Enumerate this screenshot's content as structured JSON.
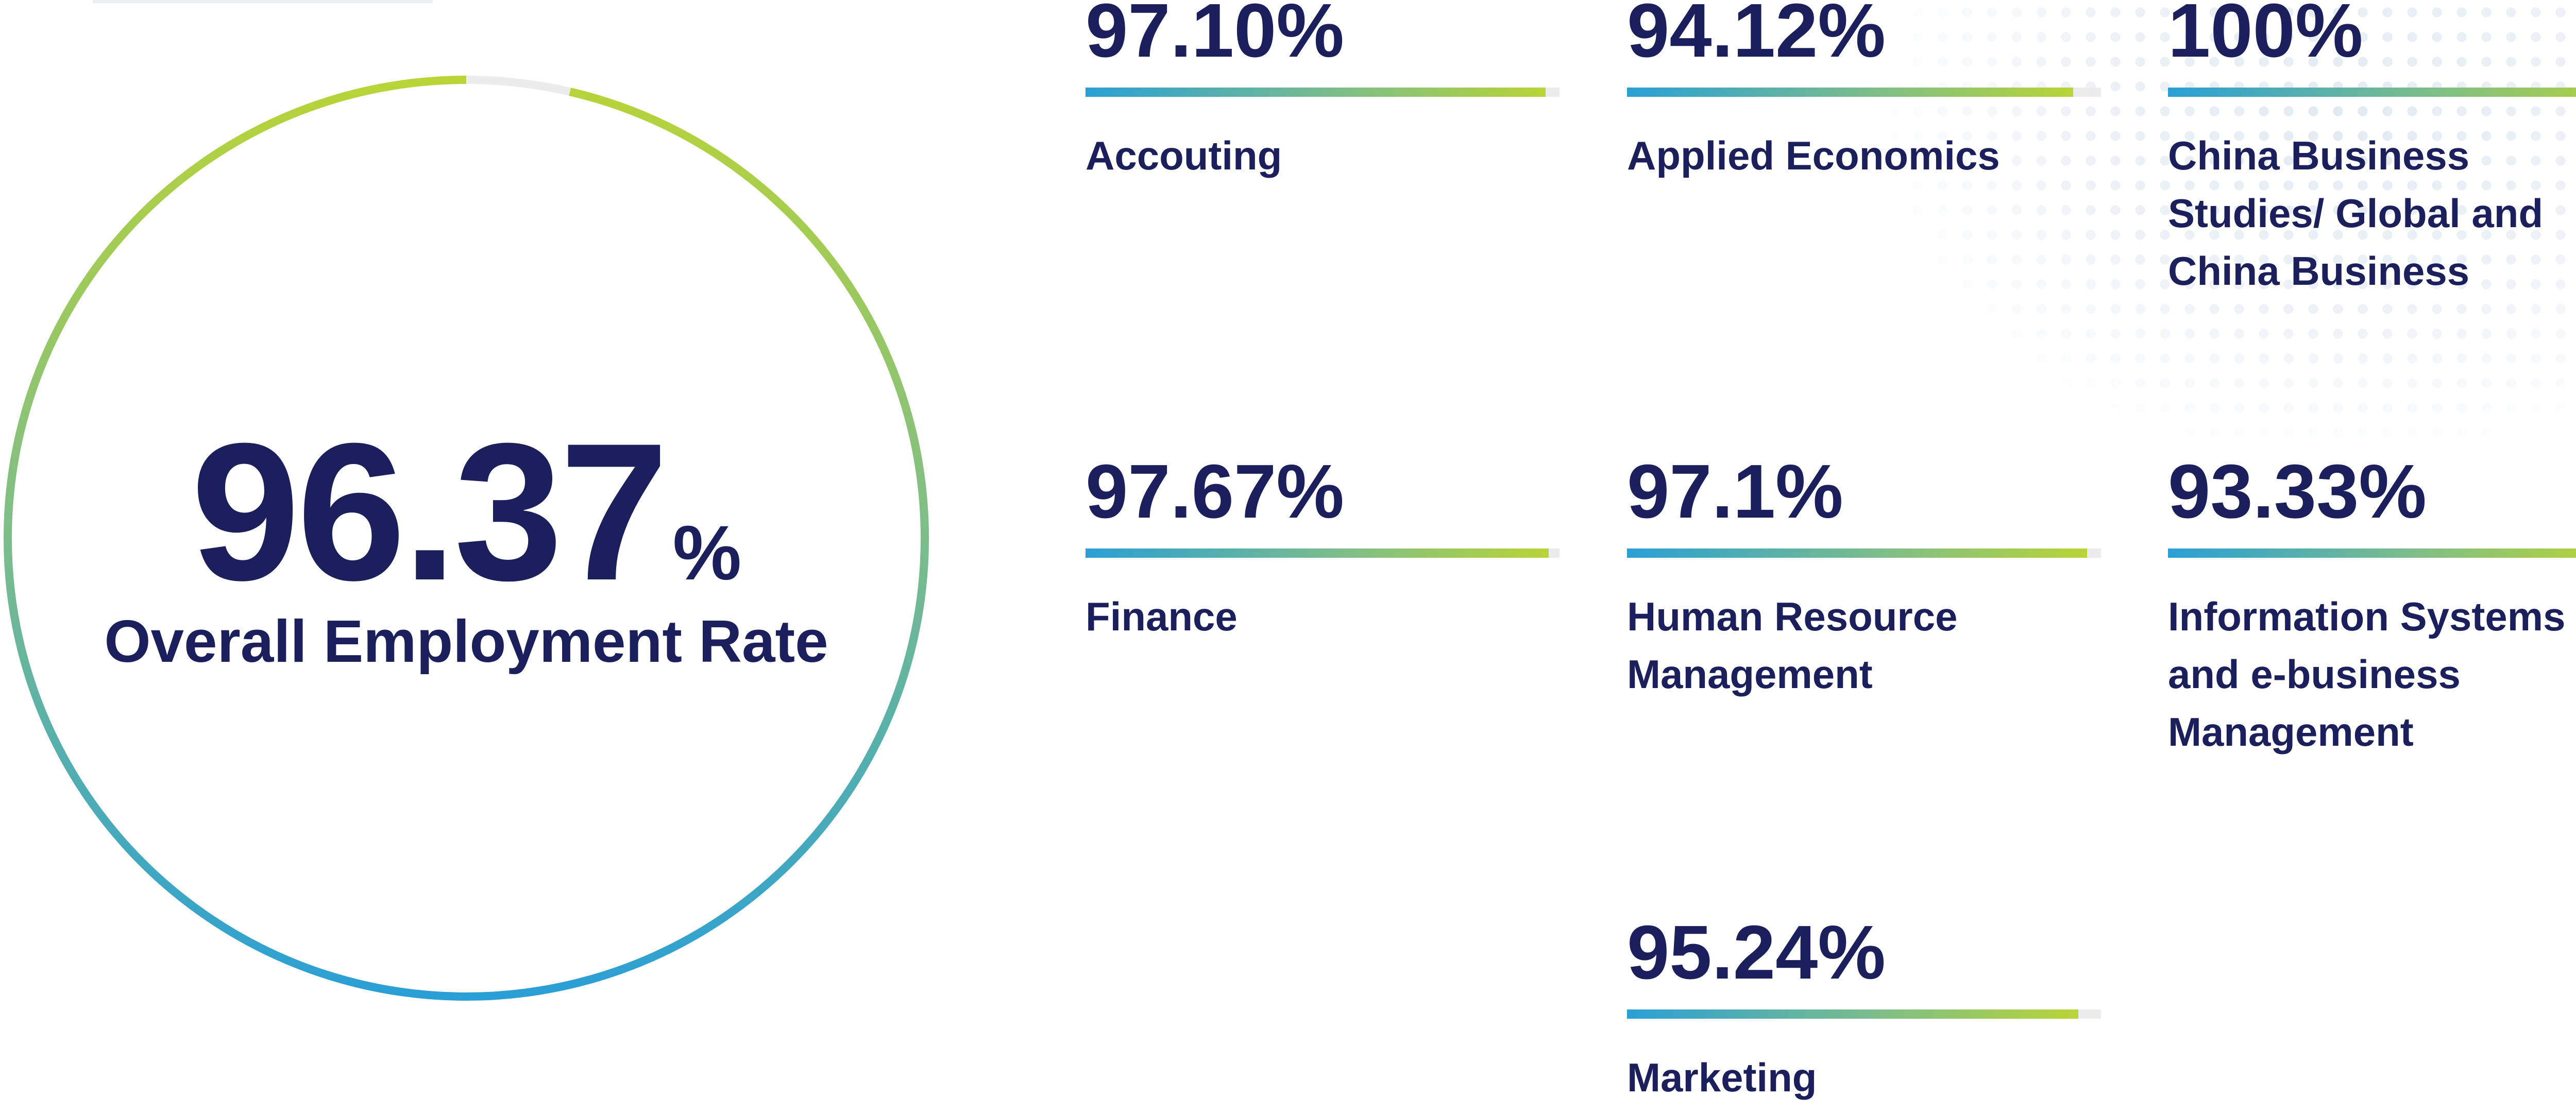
{
  "overall": {
    "value": "96.37",
    "unit": "%",
    "label": "Overall Employment Rate",
    "rate": 0.9637
  },
  "stats": [
    {
      "value": "97.10%",
      "name": "Accouting",
      "rate": 0.971
    },
    {
      "value": "94.12%",
      "name": "Applied Economics",
      "rate": 0.9412
    },
    {
      "value": "100%",
      "name": "China Business Studies/ Global and China Business",
      "rate": 1.0
    },
    {
      "value": "97.67%",
      "name": "Finance",
      "rate": 0.9767
    },
    {
      "value": "97.1%",
      "name": "Human Resource Management",
      "rate": 0.971
    },
    {
      "value": "93.33%",
      "name": "Information Systems and e-business Management",
      "rate": 0.9333
    },
    {
      "value": "95.24%",
      "name": "Marketing",
      "rate": 0.9524
    }
  ],
  "colors": {
    "text": "#1b1f5c",
    "gradient_start": "#2a9fd6",
    "gradient_mid": "#7cbd8a",
    "gradient_end": "#b9d437",
    "track": "#ececec"
  },
  "chart_data": [
    {
      "type": "pie",
      "title": "Overall Employment Rate",
      "values": [
        96.37,
        3.63
      ],
      "categories": [
        "",
        ""
      ],
      "unit": "%"
    },
    {
      "type": "bar",
      "categories": [
        "Accouting",
        "Applied Economics",
        "China Business Studies/ Global and China Business",
        "Finance",
        "Human Resource Management",
        "Information Systems and e-business Management",
        "Marketing"
      ],
      "values": [
        97.1,
        94.12,
        100,
        97.67,
        97.1,
        93.33,
        95.24
      ],
      "unit": "%",
      "ylim": [
        0,
        100
      ],
      "grid": false,
      "legend": "none"
    }
  ]
}
